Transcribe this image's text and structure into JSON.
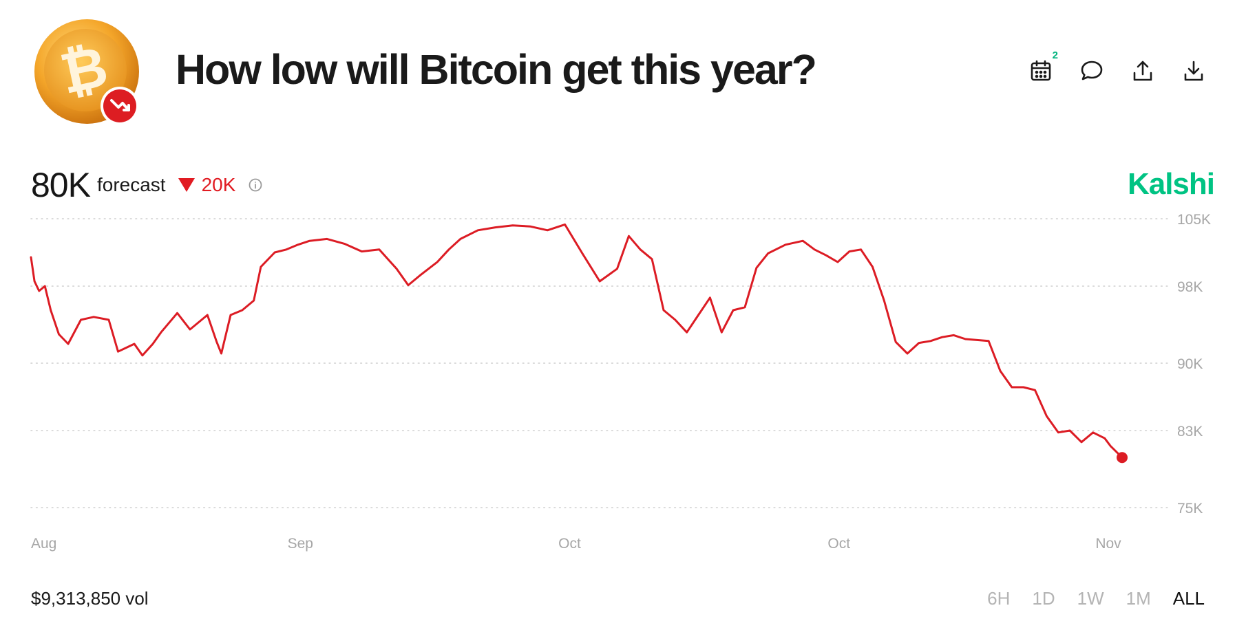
{
  "header": {
    "title": "How low will Bitcoin get this year?",
    "actions": [
      {
        "name": "calendar-icon",
        "badge": "2"
      },
      {
        "name": "comment-icon"
      },
      {
        "name": "share-icon"
      },
      {
        "name": "download-icon"
      }
    ]
  },
  "forecast": {
    "value": "80K",
    "label": "forecast",
    "change": "20K",
    "change_direction": "down"
  },
  "brand": "Kalshi",
  "colors": {
    "series": "#dc1c24",
    "brand": "#00c383",
    "badge": "#00b37e",
    "grid": "#cfcfcf",
    "axis_text": "#a6a6a6"
  },
  "chart_data": {
    "type": "line",
    "title": "",
    "xlabel": "",
    "ylabel": "",
    "y_ticks": [
      "105K",
      "98K",
      "90K",
      "83K",
      "75K"
    ],
    "y_tick_values": [
      105000,
      98000,
      90000,
      83000,
      75000
    ],
    "ylim": [
      75000,
      105000
    ],
    "x_ticks": [
      "Aug",
      "Sep",
      "Oct",
      "Oct",
      "Nov"
    ],
    "grid": "horizontal dotted",
    "series": [
      {
        "color": "#dc1c24",
        "x": [
          0,
          0.3,
          0.7,
          1.2,
          1.7,
          2.4,
          3.2,
          4.3,
          5.4,
          6.7,
          7.5,
          8.9,
          9.6,
          10.5,
          11.2,
          12.6,
          13.7,
          15.2,
          16.0,
          16.4,
          17.2,
          18.2,
          19.2,
          19.8,
          21.0,
          22.0,
          23.0,
          24.0,
          25.5,
          27.0,
          28.5,
          30.0,
          31.5,
          32.5,
          33.5,
          35.0,
          36.0,
          37.0,
          38.5,
          40.0,
          41.5,
          43.0,
          44.5,
          46.0,
          47.5,
          49.0,
          50.5,
          51.5,
          52.5,
          53.5,
          54.5,
          55.5,
          56.5,
          57.5,
          58.5,
          59.5,
          60.5,
          61.5,
          62.5,
          63.5,
          65.0,
          66.5,
          67.5,
          68.5,
          69.5,
          70.5,
          71.5,
          72.5,
          73.5,
          74.5,
          75.5,
          76.5,
          77.5,
          78.5,
          79.5,
          80.5,
          81.5,
          82.5,
          83.5,
          84.5,
          85.5,
          86.5,
          87.5,
          88.5,
          89.5,
          90.5,
          91.5,
          92.5,
          93.0,
          93.5,
          94.0
        ],
        "values": [
          101000,
          98500,
          97500,
          98000,
          95500,
          93000,
          92000,
          94500,
          94800,
          94500,
          91200,
          92000,
          90800,
          92000,
          93200,
          95200,
          93500,
          95000,
          92200,
          91000,
          95000,
          95500,
          96500,
          100000,
          101500,
          101800,
          102300,
          102700,
          102900,
          102400,
          101600,
          101800,
          99800,
          98100,
          99100,
          100500,
          101800,
          102900,
          103800,
          104100,
          104300,
          104200,
          103800,
          104400,
          101400,
          98500,
          99800,
          103200,
          101800,
          100800,
          95500,
          94500,
          93200,
          95000,
          96800,
          93200,
          95500,
          95800,
          99900,
          101400,
          102300,
          102700,
          101800,
          101200,
          100500,
          101600,
          101800,
          100000,
          96500,
          92200,
          91000,
          92100,
          92300,
          92700,
          92900,
          92500,
          92400,
          92300,
          89200,
          87500,
          87500,
          87200,
          84500,
          82800,
          83000,
          81800,
          82800,
          82200,
          81400,
          80800,
          80200
        ]
      }
    ]
  },
  "footer": {
    "volume": "$9,313,850 vol",
    "ranges": [
      {
        "label": "6H",
        "active": false
      },
      {
        "label": "1D",
        "active": false
      },
      {
        "label": "1W",
        "active": false
      },
      {
        "label": "1M",
        "active": false
      },
      {
        "label": "ALL",
        "active": true
      }
    ]
  }
}
